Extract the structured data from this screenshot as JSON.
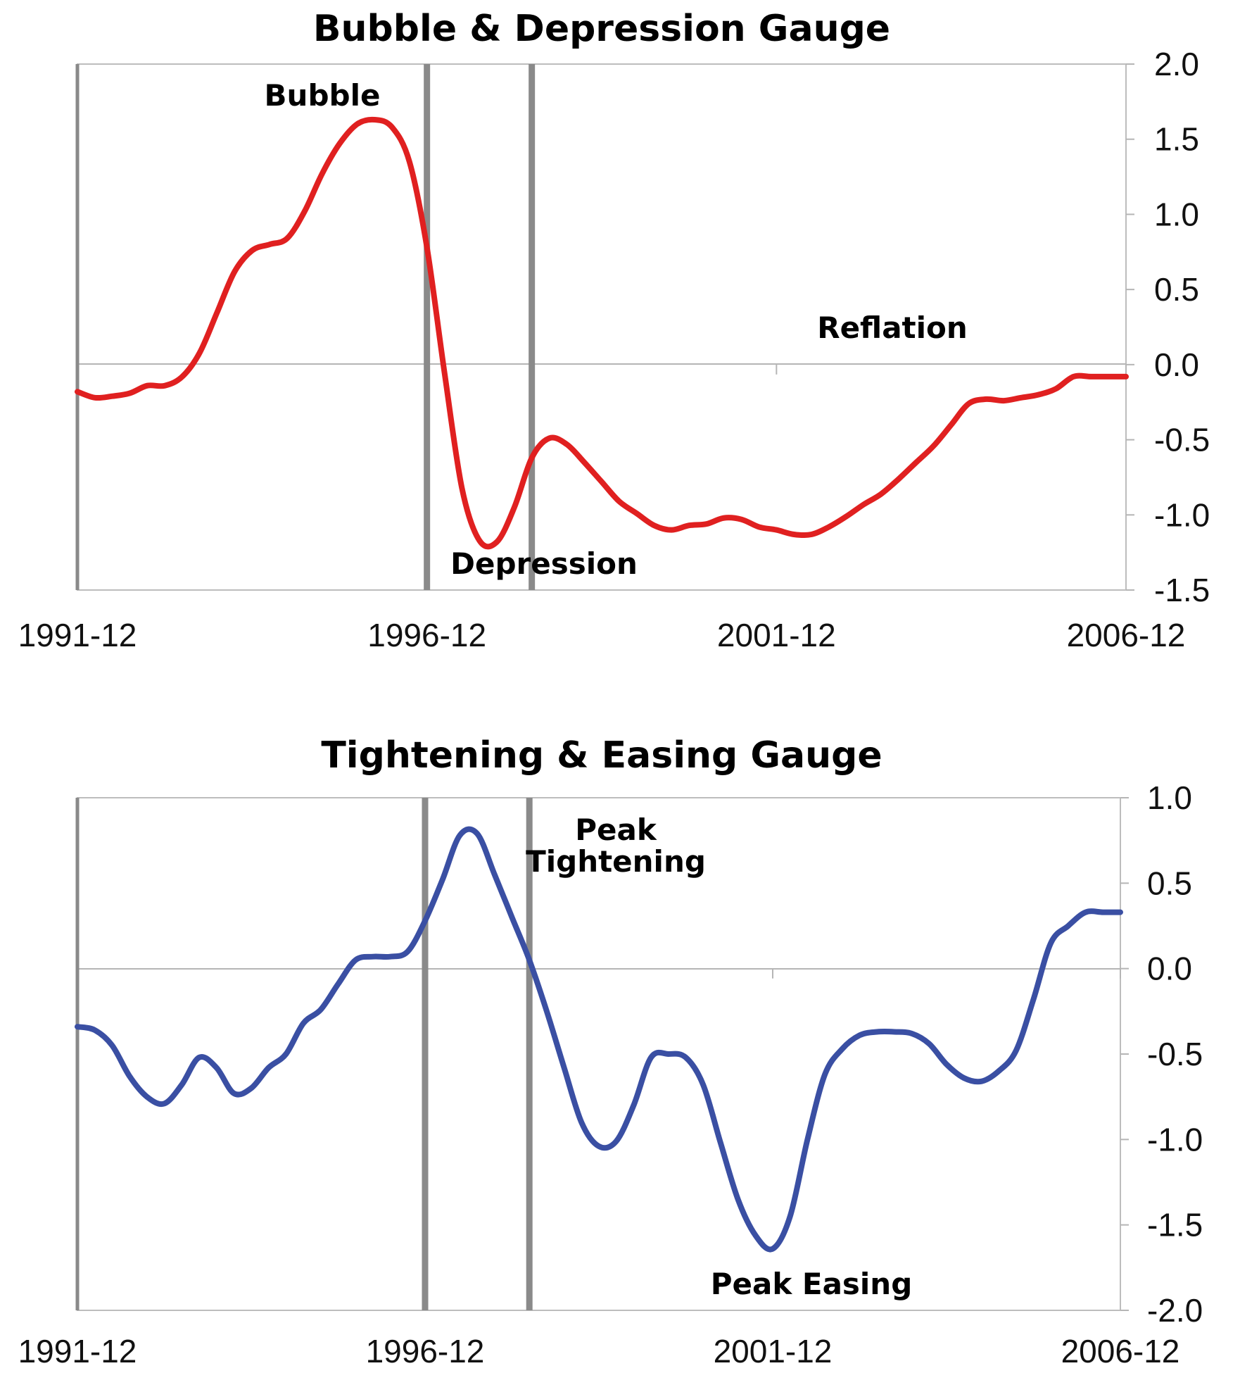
{
  "chart_data": [
    {
      "type": "line",
      "title": "Bubble & Depression Gauge",
      "xlabel": "",
      "ylabel": "",
      "x_ticks": [
        "1991-12",
        "1996-12",
        "2001-12",
        "2006-12"
      ],
      "y_ticks": [
        "2.0",
        "1.5",
        "1.0",
        "0.5",
        "0.0",
        "-0.5",
        "-1.0",
        "-1.5"
      ],
      "ylim": [
        -1.5,
        2.0
      ],
      "xlim": [
        "1991-12",
        "2006-12"
      ],
      "y_axis_side": "right",
      "grid": false,
      "vertical_markers": [
        "1996-12",
        "1998-06"
      ],
      "annotations": [
        {
          "text": "Bubble",
          "x": "1995-02",
          "y": 1.78
        },
        {
          "text": "Reflation",
          "x": "2003-08",
          "y": 0.21
        },
        {
          "text": "Depression",
          "x": "1998-05",
          "y": -1.33
        }
      ],
      "series": [
        {
          "color": "#e02020",
          "x": [
            "1991-12",
            "1992-03",
            "1992-06",
            "1992-09",
            "1992-12",
            "1993-03",
            "1993-06",
            "1993-09",
            "1993-12",
            "1994-03",
            "1994-06",
            "1994-09",
            "1994-12",
            "1995-03",
            "1995-06",
            "1995-09",
            "1995-12",
            "1996-03",
            "1996-06",
            "1996-09",
            "1996-12",
            "1997-03",
            "1997-06",
            "1997-09",
            "1997-12",
            "1998-03",
            "1998-06",
            "1998-09",
            "1998-12",
            "1999-03",
            "1999-06",
            "1999-09",
            "1999-12",
            "2000-03",
            "2000-06",
            "2000-09",
            "2000-12",
            "2001-03",
            "2001-06",
            "2001-09",
            "2001-12",
            "2002-03",
            "2002-06",
            "2002-09",
            "2002-12",
            "2003-03",
            "2003-06",
            "2003-09",
            "2003-12",
            "2004-03",
            "2004-06",
            "2004-09",
            "2004-12",
            "2005-03",
            "2005-06",
            "2005-09",
            "2005-12",
            "2006-03",
            "2006-06",
            "2006-09",
            "2006-12"
          ],
          "values": [
            -0.18,
            -0.22,
            -0.21,
            -0.19,
            -0.14,
            -0.14,
            -0.08,
            0.08,
            0.35,
            0.62,
            0.76,
            0.8,
            0.84,
            1.02,
            1.27,
            1.47,
            1.6,
            1.63,
            1.58,
            1.35,
            0.78,
            -0.05,
            -0.82,
            -1.17,
            -1.18,
            -0.95,
            -0.62,
            -0.49,
            -0.53,
            -0.65,
            -0.78,
            -0.91,
            -0.99,
            -1.07,
            -1.1,
            -1.07,
            -1.06,
            -1.02,
            -1.03,
            -1.08,
            -1.1,
            -1.13,
            -1.13,
            -1.08,
            -1.01,
            -0.93,
            -0.86,
            -0.76,
            -0.65,
            -0.54,
            -0.4,
            -0.26,
            -0.23,
            -0.24,
            -0.22,
            -0.2,
            -0.16,
            -0.08,
            -0.08,
            -0.08,
            -0.08
          ]
        }
      ]
    },
    {
      "type": "line",
      "title": "Tightening & Easing Gauge",
      "xlabel": "",
      "ylabel": "",
      "x_ticks": [
        "1991-12",
        "1996-12",
        "2001-12",
        "2006-12"
      ],
      "y_ticks": [
        "1.0",
        "0.5",
        "0.0",
        "-0.5",
        "-1.0",
        "-1.5",
        "-2.0"
      ],
      "ylim": [
        -2.0,
        1.0
      ],
      "xlim": [
        "1991-12",
        "2006-12"
      ],
      "y_axis_side": "right",
      "grid": false,
      "vertical_markers": [
        "1996-12",
        "1998-06"
      ],
      "annotations": [
        {
          "text": "Peak",
          "x": "1999-01",
          "y": 0.81
        },
        {
          "text": "Tightening",
          "x": "1999-01",
          "y": 0.63
        },
        {
          "text": "Peak Easing",
          "x": "2002-07",
          "y": -1.88
        }
      ],
      "series": [
        {
          "color": "#3a4fa3",
          "x": [
            "1991-12",
            "1992-03",
            "1992-06",
            "1992-09",
            "1992-12",
            "1993-03",
            "1993-06",
            "1993-09",
            "1993-12",
            "1994-03",
            "1994-06",
            "1994-09",
            "1994-12",
            "1995-03",
            "1995-06",
            "1995-09",
            "1995-12",
            "1996-03",
            "1996-06",
            "1996-09",
            "1996-12",
            "1997-03",
            "1997-06",
            "1997-09",
            "1997-12",
            "1998-03",
            "1998-06",
            "1998-09",
            "1998-12",
            "1999-03",
            "1999-06",
            "1999-09",
            "1999-12",
            "2000-03",
            "2000-06",
            "2000-09",
            "2000-12",
            "2001-03",
            "2001-06",
            "2001-09",
            "2001-12",
            "2002-03",
            "2002-06",
            "2002-09",
            "2002-12",
            "2003-03",
            "2003-06",
            "2003-09",
            "2003-12",
            "2004-03",
            "2004-06",
            "2004-09",
            "2004-12",
            "2005-03",
            "2005-06",
            "2005-09",
            "2005-12",
            "2006-03",
            "2006-06",
            "2006-09",
            "2006-12"
          ],
          "values": [
            -0.34,
            -0.36,
            -0.45,
            -0.63,
            -0.75,
            -0.79,
            -0.68,
            -0.52,
            -0.58,
            -0.73,
            -0.7,
            -0.58,
            -0.5,
            -0.32,
            -0.24,
            -0.09,
            0.05,
            0.07,
            0.07,
            0.1,
            0.28,
            0.52,
            0.78,
            0.79,
            0.55,
            0.3,
            0.05,
            -0.25,
            -0.58,
            -0.9,
            -1.04,
            -1.01,
            -0.8,
            -0.52,
            -0.5,
            -0.52,
            -0.68,
            -1.02,
            -1.35,
            -1.56,
            -1.64,
            -1.45,
            -1.0,
            -0.62,
            -0.47,
            -0.39,
            -0.37,
            -0.37,
            -0.38,
            -0.44,
            -0.56,
            -0.64,
            -0.66,
            -0.6,
            -0.48,
            -0.18,
            0.15,
            0.25,
            0.33,
            0.33,
            0.33
          ]
        }
      ]
    }
  ]
}
